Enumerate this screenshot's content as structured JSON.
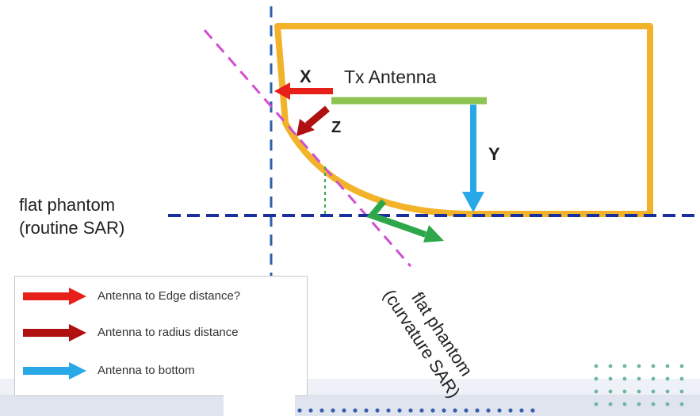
{
  "labels": {
    "x": "X",
    "tx_antenna": "Tx Antenna",
    "z": "Z",
    "y": "Y",
    "flat_phantom_routine": [
      "flat phantom",
      "(routine SAR)"
    ],
    "flat_phantom_curvature": [
      "flat phantom",
      "(curvature SAR)"
    ]
  },
  "legend": [
    {
      "label": "Antenna to Edge distance?",
      "color": "#e8201a"
    },
    {
      "label": "Antenna to radius distance",
      "color": "#b01010"
    },
    {
      "label": "Antenna to bottom",
      "color": "#29a8e8"
    }
  ],
  "colors": {
    "device_outline": "#f2b32a",
    "antenna": "#8dc453",
    "axis_dashed_blue": "#2e62a8",
    "phantom_line": "#1a2f9e",
    "curvature_line": "#d04fd0",
    "arrow_x": "#e8201a",
    "arrow_z": "#b01010",
    "arrow_y": "#29a8e8",
    "normal_arrow": "#2ea64a",
    "dotted_green": "#3aa84c"
  }
}
